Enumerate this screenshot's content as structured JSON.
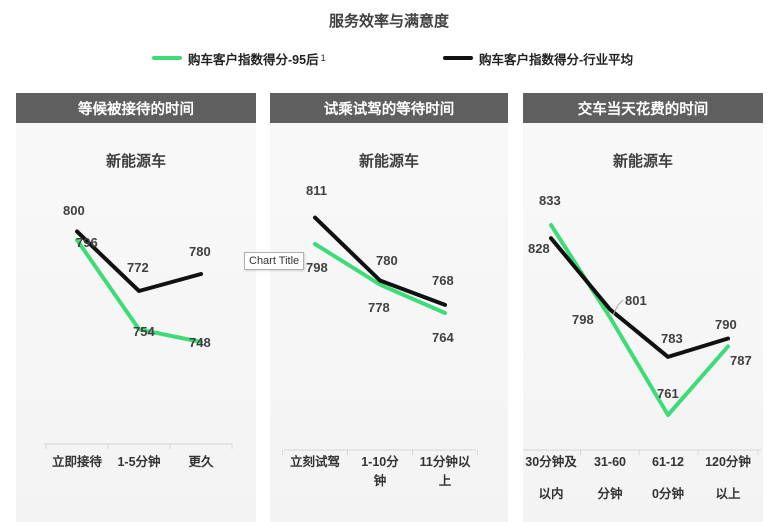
{
  "title": "服务效率与满意度",
  "legend": [
    {
      "label": "购车客户指数得分-95后",
      "sup": "1",
      "color": "#3ddc78"
    },
    {
      "label": "购车客户指数得分-行业平均",
      "sup": "",
      "color": "#111111"
    }
  ],
  "tooltip": "Chart Title",
  "colors": {
    "green": "#3ddc78",
    "black": "#111111",
    "header": "#5f5f5f"
  },
  "chart_data": [
    {
      "type": "line",
      "panel_title": "等候被接待的时间",
      "title": "新能源车",
      "categories": [
        "立即接待",
        "1-5分钟",
        "更久"
      ],
      "series": [
        {
          "name": "购车客户指数得分-95后",
          "values": [
            796,
            754,
            748
          ]
        },
        {
          "name": "购车客户指数得分-行业平均",
          "values": [
            800,
            772,
            780
          ]
        }
      ]
    },
    {
      "type": "line",
      "panel_title": "试乘试驾的等待时间",
      "title": "新能源车",
      "categories": [
        "立刻试驾",
        "1-10分钟",
        "11分钟以上"
      ],
      "series": [
        {
          "name": "购车客户指数得分-95后",
          "values": [
            798,
            778,
            764
          ]
        },
        {
          "name": "购车客户指数得分-行业平均",
          "values": [
            811,
            780,
            768
          ]
        }
      ]
    },
    {
      "type": "line",
      "panel_title": "交车当天花费的时间",
      "title": "新能源车",
      "categories": [
        "30分钟及以内",
        "31-60分钟",
        "61-120分钟",
        "120分钟以上"
      ],
      "series": [
        {
          "name": "购车客户指数得分-95后",
          "values": [
            833,
            798,
            761,
            787
          ]
        },
        {
          "name": "购车客户指数得分-行业平均",
          "values": [
            828,
            801,
            783,
            790
          ]
        }
      ]
    }
  ]
}
